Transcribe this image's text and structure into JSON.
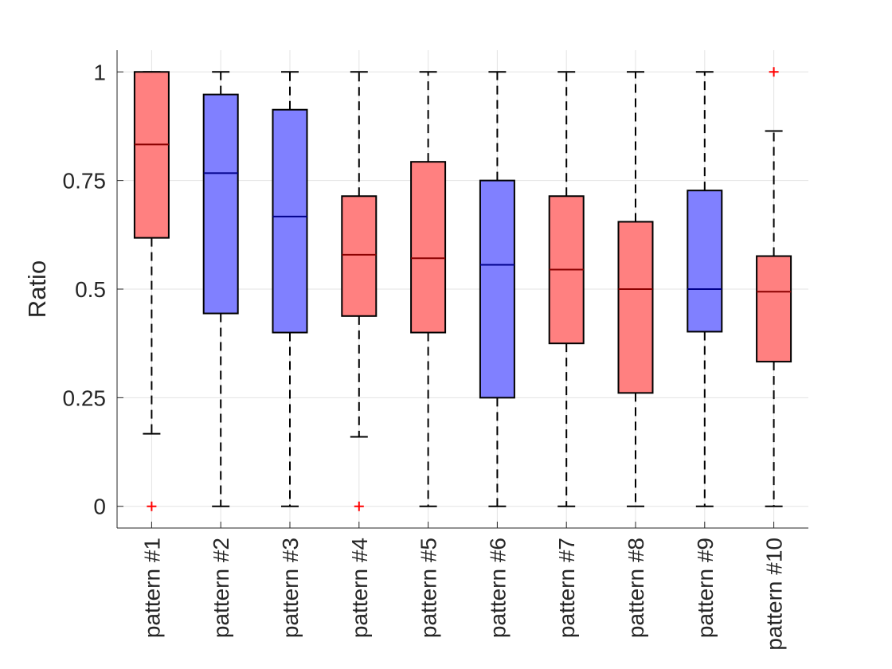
{
  "chart_data": {
    "type": "boxplot",
    "title": "",
    "xlabel": "",
    "ylabel": "Ratio",
    "ylim": [
      -0.05,
      1.05
    ],
    "yticks": [
      0,
      0.25,
      0.5,
      0.75,
      1
    ],
    "ytick_labels": [
      "0",
      "0.25",
      "0.5",
      "0.75",
      "1"
    ],
    "grid": true,
    "colors": {
      "red": "#ff8080",
      "blue": "#8080ff",
      "outlier": "#ff0000"
    },
    "boxes": [
      {
        "label": "pattern #1",
        "color": "red",
        "whisker_low": 0.167,
        "q1": 0.618,
        "median": 0.833,
        "q3": 1.0,
        "whisker_high": 1.0,
        "outliers": [
          0
        ]
      },
      {
        "label": "pattern #2",
        "color": "blue",
        "whisker_low": 0.0,
        "q1": 0.444,
        "median": 0.767,
        "q3": 0.948,
        "whisker_high": 1.0,
        "outliers": []
      },
      {
        "label": "pattern #3",
        "color": "blue",
        "whisker_low": 0.0,
        "q1": 0.4,
        "median": 0.667,
        "q3": 0.913,
        "whisker_high": 1.0,
        "outliers": []
      },
      {
        "label": "pattern #4",
        "color": "red",
        "whisker_low": 0.16,
        "q1": 0.438,
        "median": 0.579,
        "q3": 0.714,
        "whisker_high": 1.0,
        "outliers": [
          0
        ]
      },
      {
        "label": "pattern #5",
        "color": "red",
        "whisker_low": 0.0,
        "q1": 0.4,
        "median": 0.571,
        "q3": 0.793,
        "whisker_high": 1.0,
        "outliers": []
      },
      {
        "label": "pattern #6",
        "color": "blue",
        "whisker_low": 0.0,
        "q1": 0.25,
        "median": 0.556,
        "q3": 0.75,
        "whisker_high": 1.0,
        "outliers": []
      },
      {
        "label": "pattern #7",
        "color": "red",
        "whisker_low": 0.0,
        "q1": 0.375,
        "median": 0.545,
        "q3": 0.714,
        "whisker_high": 1.0,
        "outliers": []
      },
      {
        "label": "pattern #8",
        "color": "red",
        "whisker_low": 0.0,
        "q1": 0.261,
        "median": 0.5,
        "q3": 0.655,
        "whisker_high": 1.0,
        "outliers": []
      },
      {
        "label": "pattern #9",
        "color": "blue",
        "whisker_low": 0.0,
        "q1": 0.402,
        "median": 0.5,
        "q3": 0.727,
        "whisker_high": 1.0,
        "outliers": []
      },
      {
        "label": "pattern #10",
        "color": "red",
        "whisker_low": 0.0,
        "q1": 0.333,
        "median": 0.494,
        "q3": 0.576,
        "whisker_high": 0.864,
        "outliers": [
          1
        ]
      }
    ]
  }
}
